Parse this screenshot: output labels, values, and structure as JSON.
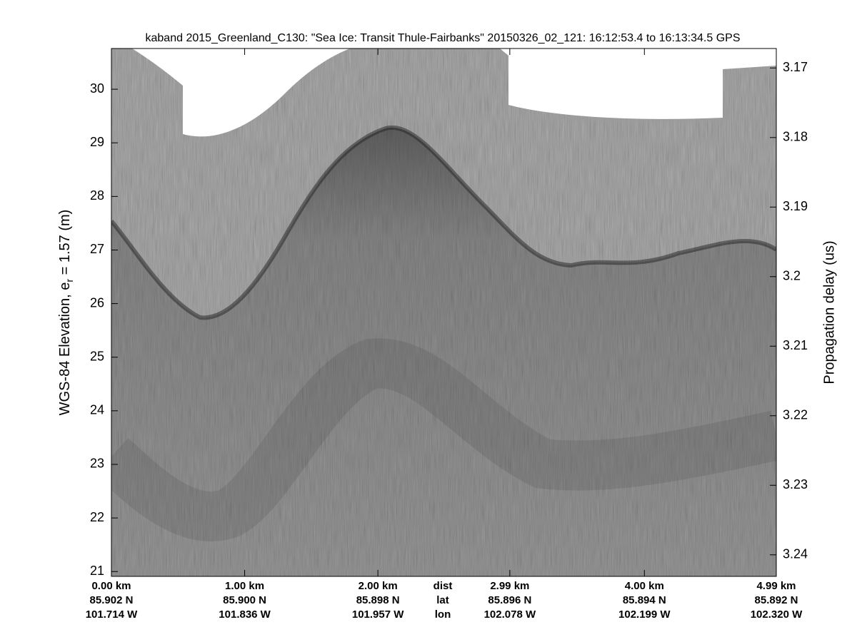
{
  "chart_data": {
    "type": "echogram",
    "title": "kaband 2015_Greenland_C130: \"Sea Ice: Transit Thule-Fairbanks\"  20150326_02_121: 16:12:53.4 to 16:13:34.5 GPS",
    "ylabel": {
      "text": "WGS-84 Elevation, e",
      "subscript": "r",
      "rest": " = 1.57 (m)"
    },
    "y2label": "Propagation delay (us)",
    "ylim": [
      20.91,
      30.76
    ],
    "yticks": [
      21,
      22,
      23,
      24,
      25,
      26,
      27,
      28,
      29,
      30
    ],
    "y2lim": [
      3.2431,
      3.1672
    ],
    "y2ticks": [
      3.17,
      3.18,
      3.19,
      3.2,
      3.21,
      3.22,
      3.23,
      3.24
    ],
    "xlim": [
      0,
      4.99
    ],
    "xticks": [
      {
        "value": 0,
        "label": "0.00 km"
      },
      {
        "value": 1,
        "label": "1.00 km"
      },
      {
        "value": 2,
        "label": "2.00 km"
      },
      {
        "value": 2.99,
        "label": "2.99 km"
      },
      {
        "value": 4,
        "label": "4.00 km"
      },
      {
        "value": 4.99,
        "label": "4.99 km"
      }
    ],
    "lat_labels": [
      "85.902 N",
      "85.900 N",
      "85.898 N",
      "85.896 N",
      "85.894 N",
      "85.892 N"
    ],
    "lon_labels": [
      "101.714 W",
      "101.836 W",
      "101.957 W",
      "102.078 W",
      "102.199 W",
      "102.320 W"
    ],
    "row_names": [
      "dist",
      "lat",
      "lon"
    ]
  }
}
